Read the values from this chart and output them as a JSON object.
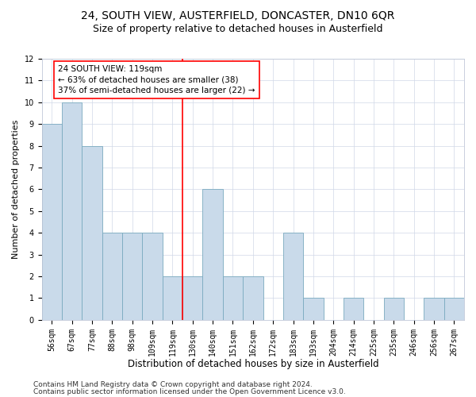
{
  "title1": "24, SOUTH VIEW, AUSTERFIELD, DONCASTER, DN10 6QR",
  "title2": "Size of property relative to detached houses in Austerfield",
  "xlabel": "Distribution of detached houses by size in Austerfield",
  "ylabel": "Number of detached properties",
  "categories": [
    "56sqm",
    "67sqm",
    "77sqm",
    "88sqm",
    "98sqm",
    "109sqm",
    "119sqm",
    "130sqm",
    "140sqm",
    "151sqm",
    "162sqm",
    "172sqm",
    "183sqm",
    "193sqm",
    "204sqm",
    "214sqm",
    "225sqm",
    "235sqm",
    "246sqm",
    "256sqm",
    "267sqm"
  ],
  "values": [
    9,
    10,
    8,
    4,
    4,
    4,
    2,
    2,
    6,
    2,
    2,
    0,
    4,
    1,
    0,
    1,
    0,
    1,
    0,
    1,
    1
  ],
  "bar_color": "#c9daea",
  "bar_edgecolor": "#7aaabf",
  "vline_index": 6,
  "annotation_text": "24 SOUTH VIEW: 119sqm\n← 63% of detached houses are smaller (38)\n37% of semi-detached houses are larger (22) →",
  "annotation_box_color": "white",
  "annotation_box_edgecolor": "red",
  "vline_color": "red",
  "ylim": [
    0,
    12
  ],
  "yticks": [
    0,
    1,
    2,
    3,
    4,
    5,
    6,
    7,
    8,
    9,
    10,
    11,
    12
  ],
  "footer1": "Contains HM Land Registry data © Crown copyright and database right 2024.",
  "footer2": "Contains public sector information licensed under the Open Government Licence v3.0.",
  "title1_fontsize": 10,
  "title2_fontsize": 9,
  "xlabel_fontsize": 8.5,
  "ylabel_fontsize": 8,
  "tick_fontsize": 7,
  "annotation_fontsize": 7.5,
  "footer_fontsize": 6.5
}
